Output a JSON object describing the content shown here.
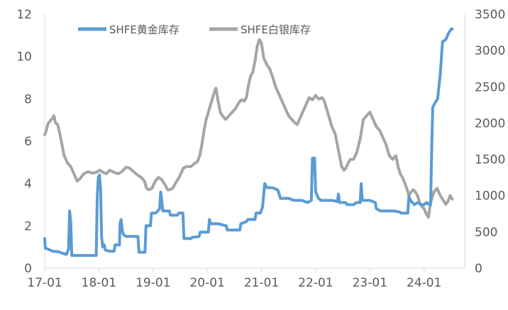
{
  "chart_data": {
    "type": "line",
    "title": "",
    "xlabel": "",
    "ylabel_left": "",
    "ylabel_right": "",
    "x_range": [
      2017.0,
      2024.75
    ],
    "x_ticks": [
      {
        "label": "17-01",
        "x": 2017.0
      },
      {
        "label": "18-01",
        "x": 2018.0
      },
      {
        "label": "19-01",
        "x": 2019.0
      },
      {
        "label": "20-01",
        "x": 2020.0
      },
      {
        "label": "21-01",
        "x": 2021.0
      },
      {
        "label": "22-01",
        "x": 2022.0
      },
      {
        "label": "23-01",
        "x": 2023.0
      },
      {
        "label": "24-01",
        "x": 2024.0
      }
    ],
    "y_left": {
      "min": 0,
      "max": 12,
      "ticks": [
        0,
        2,
        4,
        6,
        8,
        10,
        12
      ]
    },
    "y_right": {
      "min": 0,
      "max": 3500,
      "ticks": [
        0,
        500,
        1000,
        1500,
        2000,
        2500,
        3000,
        3500
      ]
    },
    "grid": false,
    "legend_position": "top",
    "series": [
      {
        "name": "SHFE黄金库存",
        "axis": "left",
        "color": "#5b9bd5",
        "points": [
          [
            2017.0,
            1.4
          ],
          [
            2017.01,
            0.95
          ],
          [
            2017.06,
            0.9
          ],
          [
            2017.1,
            0.85
          ],
          [
            2017.15,
            0.8
          ],
          [
            2017.25,
            0.78
          ],
          [
            2017.33,
            0.7
          ],
          [
            2017.4,
            0.65
          ],
          [
            2017.44,
            0.9
          ],
          [
            2017.46,
            2.7
          ],
          [
            2017.48,
            2.2
          ],
          [
            2017.5,
            0.6
          ],
          [
            2017.62,
            0.6
          ],
          [
            2017.75,
            0.6
          ],
          [
            2017.88,
            0.6
          ],
          [
            2017.95,
            0.6
          ],
          [
            2017.97,
            3.4
          ],
          [
            2017.99,
            4.3
          ],
          [
            2018.01,
            4.4
          ],
          [
            2018.03,
            3.8
          ],
          [
            2018.05,
            1.5
          ],
          [
            2018.07,
            1.0
          ],
          [
            2018.1,
            1.1
          ],
          [
            2018.12,
            0.85
          ],
          [
            2018.2,
            0.8
          ],
          [
            2018.28,
            0.8
          ],
          [
            2018.3,
            1.1
          ],
          [
            2018.38,
            1.1
          ],
          [
            2018.39,
            2.1
          ],
          [
            2018.41,
            2.3
          ],
          [
            2018.43,
            1.8
          ],
          [
            2018.45,
            1.6
          ],
          [
            2018.5,
            1.5
          ],
          [
            2018.6,
            1.5
          ],
          [
            2018.72,
            1.5
          ],
          [
            2018.74,
            0.75
          ],
          [
            2018.85,
            0.75
          ],
          [
            2018.87,
            2.0
          ],
          [
            2018.95,
            2.0
          ],
          [
            2018.97,
            2.6
          ],
          [
            2019.05,
            2.6
          ],
          [
            2019.12,
            2.8
          ],
          [
            2019.14,
            3.6
          ],
          [
            2019.16,
            3.2
          ],
          [
            2019.18,
            2.7
          ],
          [
            2019.3,
            2.7
          ],
          [
            2019.32,
            2.5
          ],
          [
            2019.45,
            2.5
          ],
          [
            2019.47,
            2.6
          ],
          [
            2019.55,
            2.6
          ],
          [
            2019.57,
            1.4
          ],
          [
            2019.7,
            1.4
          ],
          [
            2019.72,
            1.45
          ],
          [
            2019.85,
            1.5
          ],
          [
            2019.87,
            1.7
          ],
          [
            2020.02,
            1.7
          ],
          [
            2020.04,
            2.3
          ],
          [
            2020.06,
            2.1
          ],
          [
            2020.2,
            2.1
          ],
          [
            2020.35,
            2.0
          ],
          [
            2020.37,
            1.8
          ],
          [
            2020.6,
            1.8
          ],
          [
            2020.62,
            2.1
          ],
          [
            2020.72,
            2.2
          ],
          [
            2020.75,
            2.3
          ],
          [
            2020.88,
            2.3
          ],
          [
            2020.9,
            2.6
          ],
          [
            2020.98,
            2.6
          ],
          [
            2021.02,
            2.9
          ],
          [
            2021.06,
            4.0
          ],
          [
            2021.1,
            3.8
          ],
          [
            2021.2,
            3.8
          ],
          [
            2021.3,
            3.7
          ],
          [
            2021.35,
            3.3
          ],
          [
            2021.5,
            3.3
          ],
          [
            2021.6,
            3.2
          ],
          [
            2021.75,
            3.2
          ],
          [
            2021.85,
            3.1
          ],
          [
            2021.92,
            3.2
          ],
          [
            2021.94,
            5.2
          ],
          [
            2021.98,
            5.2
          ],
          [
            2022.0,
            3.6
          ],
          [
            2022.05,
            3.3
          ],
          [
            2022.1,
            3.2
          ],
          [
            2022.2,
            3.2
          ],
          [
            2022.3,
            3.2
          ],
          [
            2022.4,
            3.15
          ],
          [
            2022.42,
            3.5
          ],
          [
            2022.44,
            3.1
          ],
          [
            2022.55,
            3.1
          ],
          [
            2022.58,
            3.0
          ],
          [
            2022.7,
            3.0
          ],
          [
            2022.75,
            3.1
          ],
          [
            2022.82,
            3.1
          ],
          [
            2022.84,
            4.0
          ],
          [
            2022.86,
            3.2
          ],
          [
            2023.0,
            3.2
          ],
          [
            2023.1,
            3.1
          ],
          [
            2023.12,
            2.8
          ],
          [
            2023.2,
            2.7
          ],
          [
            2023.3,
            2.7
          ],
          [
            2023.45,
            2.7
          ],
          [
            2023.55,
            2.65
          ],
          [
            2023.58,
            2.6
          ],
          [
            2023.7,
            2.6
          ],
          [
            2023.72,
            3.4
          ],
          [
            2023.75,
            3.2
          ],
          [
            2023.82,
            3.0
          ],
          [
            2023.88,
            3.1
          ],
          [
            2023.95,
            3.0
          ],
          [
            2024.0,
            3.0
          ],
          [
            2024.05,
            3.1
          ],
          [
            2024.1,
            3.0
          ],
          [
            2024.12,
            3.0
          ],
          [
            2024.14,
            5.5
          ],
          [
            2024.16,
            7.6
          ],
          [
            2024.2,
            7.8
          ],
          [
            2024.25,
            8.0
          ],
          [
            2024.3,
            9.2
          ],
          [
            2024.34,
            10.7
          ],
          [
            2024.4,
            10.8
          ],
          [
            2024.45,
            11.1
          ],
          [
            2024.5,
            11.3
          ],
          [
            2024.52,
            11.3
          ]
        ]
      },
      {
        "name": "SHFE白银库存",
        "axis": "right",
        "color": "#a5a5a5",
        "points": [
          [
            2017.0,
            1840
          ],
          [
            2017.03,
            1900
          ],
          [
            2017.06,
            1990
          ],
          [
            2017.1,
            2030
          ],
          [
            2017.14,
            2060
          ],
          [
            2017.17,
            2100
          ],
          [
            2017.2,
            2000
          ],
          [
            2017.24,
            1980
          ],
          [
            2017.28,
            1850
          ],
          [
            2017.32,
            1700
          ],
          [
            2017.36,
            1550
          ],
          [
            2017.42,
            1450
          ],
          [
            2017.48,
            1400
          ],
          [
            2017.54,
            1300
          ],
          [
            2017.6,
            1200
          ],
          [
            2017.66,
            1240
          ],
          [
            2017.72,
            1300
          ],
          [
            2017.8,
            1330
          ],
          [
            2017.88,
            1310
          ],
          [
            2017.95,
            1320
          ],
          [
            2018.02,
            1350
          ],
          [
            2018.08,
            1320
          ],
          [
            2018.14,
            1300
          ],
          [
            2018.2,
            1350
          ],
          [
            2018.28,
            1320
          ],
          [
            2018.36,
            1300
          ],
          [
            2018.44,
            1340
          ],
          [
            2018.5,
            1390
          ],
          [
            2018.56,
            1380
          ],
          [
            2018.64,
            1330
          ],
          [
            2018.72,
            1280
          ],
          [
            2018.78,
            1250
          ],
          [
            2018.84,
            1200
          ],
          [
            2018.88,
            1100
          ],
          [
            2018.92,
            1080
          ],
          [
            2018.98,
            1100
          ],
          [
            2019.04,
            1200
          ],
          [
            2019.1,
            1250
          ],
          [
            2019.16,
            1220
          ],
          [
            2019.22,
            1150
          ],
          [
            2019.27,
            1080
          ],
          [
            2019.3,
            1080
          ],
          [
            2019.36,
            1100
          ],
          [
            2019.42,
            1180
          ],
          [
            2019.48,
            1250
          ],
          [
            2019.56,
            1380
          ],
          [
            2019.62,
            1400
          ],
          [
            2019.7,
            1400
          ],
          [
            2019.76,
            1440
          ],
          [
            2019.82,
            1470
          ],
          [
            2019.86,
            1550
          ],
          [
            2019.9,
            1700
          ],
          [
            2019.94,
            1900
          ],
          [
            2019.98,
            2050
          ],
          [
            2020.04,
            2200
          ],
          [
            2020.1,
            2350
          ],
          [
            2020.14,
            2450
          ],
          [
            2020.16,
            2480
          ],
          [
            2020.2,
            2300
          ],
          [
            2020.24,
            2150
          ],
          [
            2020.28,
            2100
          ],
          [
            2020.34,
            2050
          ],
          [
            2020.4,
            2100
          ],
          [
            2020.46,
            2150
          ],
          [
            2020.52,
            2200
          ],
          [
            2020.56,
            2250
          ],
          [
            2020.6,
            2300
          ],
          [
            2020.64,
            2320
          ],
          [
            2020.68,
            2300
          ],
          [
            2020.72,
            2350
          ],
          [
            2020.76,
            2520
          ],
          [
            2020.8,
            2650
          ],
          [
            2020.84,
            2700
          ],
          [
            2020.88,
            2850
          ],
          [
            2020.92,
            3050
          ],
          [
            2020.96,
            3150
          ],
          [
            2021.0,
            3100
          ],
          [
            2021.04,
            2900
          ],
          [
            2021.1,
            2800
          ],
          [
            2021.15,
            2750
          ],
          [
            2021.2,
            2650
          ],
          [
            2021.26,
            2500
          ],
          [
            2021.32,
            2400
          ],
          [
            2021.38,
            2300
          ],
          [
            2021.44,
            2200
          ],
          [
            2021.5,
            2100
          ],
          [
            2021.56,
            2050
          ],
          [
            2021.62,
            2000
          ],
          [
            2021.66,
            1980
          ],
          [
            2021.7,
            2050
          ],
          [
            2021.76,
            2150
          ],
          [
            2021.82,
            2250
          ],
          [
            2021.88,
            2350
          ],
          [
            2021.94,
            2320
          ],
          [
            2022.0,
            2380
          ],
          [
            2022.06,
            2330
          ],
          [
            2022.12,
            2350
          ],
          [
            2022.16,
            2300
          ],
          [
            2022.2,
            2200
          ],
          [
            2022.26,
            2050
          ],
          [
            2022.3,
            1950
          ],
          [
            2022.36,
            1850
          ],
          [
            2022.4,
            1700
          ],
          [
            2022.44,
            1550
          ],
          [
            2022.48,
            1400
          ],
          [
            2022.52,
            1350
          ],
          [
            2022.56,
            1380
          ],
          [
            2022.6,
            1450
          ],
          [
            2022.64,
            1500
          ],
          [
            2022.7,
            1500
          ],
          [
            2022.76,
            1600
          ],
          [
            2022.82,
            1780
          ],
          [
            2022.88,
            2050
          ],
          [
            2022.94,
            2100
          ],
          [
            2023.0,
            2150
          ],
          [
            2023.06,
            2050
          ],
          [
            2023.12,
            1950
          ],
          [
            2023.18,
            1900
          ],
          [
            2023.24,
            1800
          ],
          [
            2023.3,
            1700
          ],
          [
            2023.36,
            1550
          ],
          [
            2023.42,
            1500
          ],
          [
            2023.48,
            1550
          ],
          [
            2023.52,
            1400
          ],
          [
            2023.56,
            1300
          ],
          [
            2023.6,
            1250
          ],
          [
            2023.64,
            1180
          ],
          [
            2023.68,
            1100
          ],
          [
            2023.72,
            1000
          ],
          [
            2023.76,
            1050
          ],
          [
            2023.8,
            1080
          ],
          [
            2023.84,
            1050
          ],
          [
            2023.88,
            1000
          ],
          [
            2023.92,
            900
          ],
          [
            2023.96,
            850
          ],
          [
            2024.0,
            820
          ],
          [
            2024.04,
            750
          ],
          [
            2024.08,
            700
          ],
          [
            2024.12,
            900
          ],
          [
            2024.18,
            1050
          ],
          [
            2024.24,
            1100
          ],
          [
            2024.3,
            1000
          ],
          [
            2024.36,
            930
          ],
          [
            2024.4,
            880
          ],
          [
            2024.44,
            920
          ],
          [
            2024.48,
            1000
          ],
          [
            2024.52,
            950
          ]
        ]
      }
    ]
  }
}
